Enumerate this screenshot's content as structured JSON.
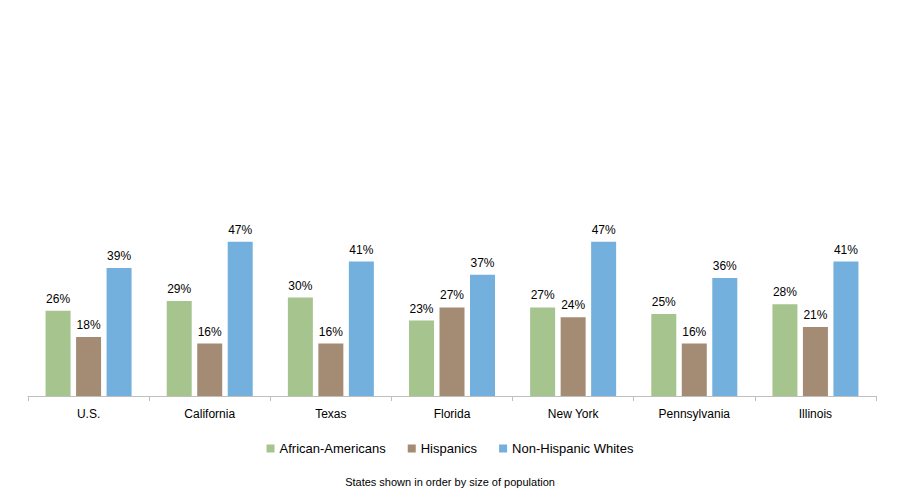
{
  "chart_data": {
    "type": "bar",
    "categories": [
      "U.S.",
      "California",
      "Texas",
      "Florida",
      "New York",
      "Pennsylvania",
      "Illinois"
    ],
    "series": [
      {
        "name": "African-Americans",
        "color": "#a6c48e",
        "values": [
          26,
          29,
          30,
          23,
          27,
          25,
          28
        ],
        "value_labels": [
          "26%",
          "29%",
          "30%",
          "23%",
          "27%",
          "25%",
          "28%"
        ]
      },
      {
        "name": "Hispanics",
        "color": "#a38b74",
        "values": [
          18,
          16,
          16,
          27,
          24,
          16,
          21
        ],
        "value_labels": [
          "18%",
          "16%",
          "16%",
          "27%",
          "24%",
          "16%",
          "21%"
        ]
      },
      {
        "name": "Non-Hispanic Whites",
        "color": "#73b0dd",
        "values": [
          39,
          47,
          41,
          37,
          47,
          36,
          41
        ],
        "value_labels": [
          "39%",
          "47%",
          "41%",
          "37%",
          "47%",
          "36%",
          "41%"
        ]
      }
    ],
    "ylim": [
      0,
      100
    ],
    "yticks": [
      0,
      100
    ],
    "grid": false,
    "legend": "bottom",
    "data_labels": true,
    "tick_labels": "x",
    "annotations": [
      "States shown in order by size of population"
    ]
  }
}
